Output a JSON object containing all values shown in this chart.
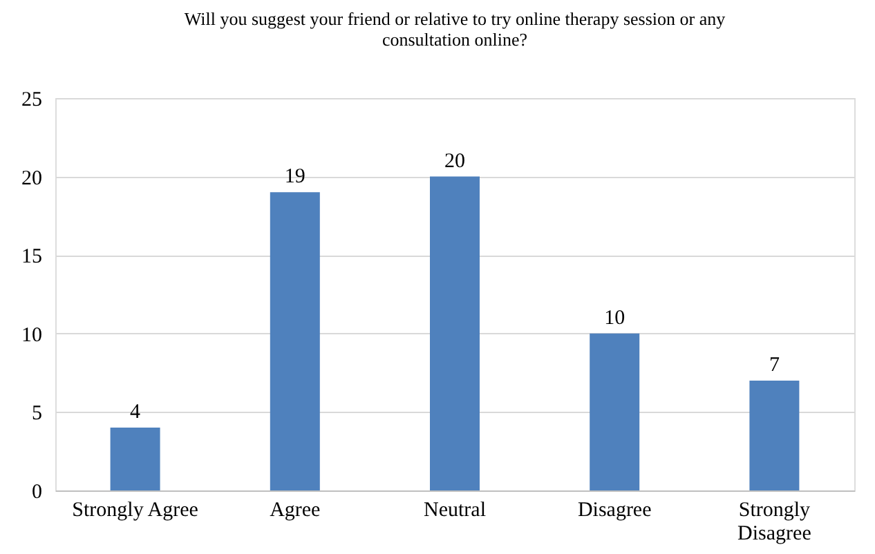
{
  "chart_data": {
    "type": "bar",
    "title": "Will you suggest your friend or relative to try online therapy session or any consultation online?",
    "categories": [
      "Strongly Agree",
      "Agree",
      "Neutral",
      "Disagree",
      "Strongly Disagree"
    ],
    "values": [
      4,
      19,
      20,
      10,
      7
    ],
    "color": "#4f81bd",
    "ylim": [
      0,
      25
    ],
    "yticks": [
      0,
      5,
      10,
      15,
      20,
      25
    ],
    "grid": "y",
    "data_labels": true
  }
}
